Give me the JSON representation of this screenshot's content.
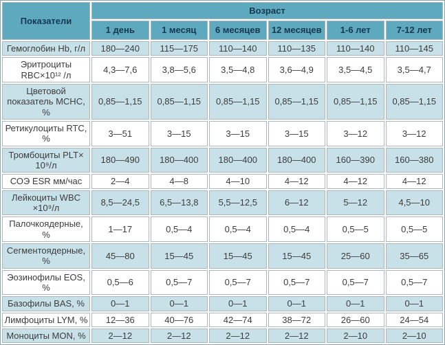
{
  "table": {
    "corner_header": "Показатели",
    "age_header": "Возраст",
    "age_columns": [
      "1 день",
      "1 месяц",
      "6 месяцев",
      "12 месяцев",
      "1-6 лет",
      "7-12 лет"
    ],
    "rows": [
      {
        "label": "Гемоглобин Hb, г/л",
        "values": [
          "180—240",
          "115—175",
          "110—140",
          "110—135",
          "110—140",
          "110—145"
        ]
      },
      {
        "label": "Эритроциты RBC×10¹² /л",
        "values": [
          "4,3—7,6",
          "3,8—5,6",
          "3,5—4,8",
          "3,6—4,9",
          "3,5—4,5",
          "3,5—4,7"
        ]
      },
      {
        "label": "Цветовой показатель MCHC, %",
        "values": [
          "0,85—1,15",
          "0,85—1,15",
          "0,85—1,15",
          "0,85—1,15",
          "0,85—1,15",
          "0,85—1,15"
        ]
      },
      {
        "label": "Ретикулоциты RTC, %",
        "values": [
          "3—51",
          "3—15",
          "3—15",
          "3—15",
          "3—12",
          "3—12"
        ]
      },
      {
        "label": "Тромбоциты PLT× 10⁹/л",
        "values": [
          "180—490",
          "180—400",
          "180—400",
          "180—400",
          "160—390",
          "160—380"
        ]
      },
      {
        "label": "СОЭ ESR мм/час",
        "values": [
          "2—4",
          "4—8",
          "4—10",
          "4—12",
          "4—12",
          "4—12"
        ]
      },
      {
        "label": "Лейкоциты WBC ×10⁹/л",
        "values": [
          "8,5—24,5",
          "6,5—13,8",
          "5,5—12,5",
          "6—12",
          "5—12",
          "4,5—10"
        ]
      },
      {
        "label": "Палочкоядерные, %",
        "values": [
          "1—17",
          "0,5—4",
          "0,5—4",
          "0,5—4",
          "0,5—5",
          "0,5—5"
        ]
      },
      {
        "label": "Сегментоядерные, %",
        "values": [
          "45—80",
          "15—45",
          "15—45",
          "15—45",
          "25—60",
          "35—65"
        ]
      },
      {
        "label": "Эозинофилы EOS, %",
        "values": [
          "0,5—6",
          "0,5—7",
          "0,5—7",
          "0,5—7",
          "0,5—7",
          "0,5—7"
        ]
      },
      {
        "label": "Базофилы BAS, %",
        "values": [
          "0—1",
          "0—1",
          "0—1",
          "0—1",
          "0—1",
          "0—1"
        ]
      },
      {
        "label": "Лимфоциты LYM, %",
        "values": [
          "12—36",
          "40—76",
          "42—74",
          "38—72",
          "26—60",
          "24—54"
        ]
      },
      {
        "label": "Моноциты MON, %",
        "values": [
          "2—12",
          "2—12",
          "2—12",
          "2—12",
          "2—10",
          "2—10"
        ]
      }
    ]
  },
  "colors": {
    "header_bg": "#5fa9bf",
    "header_text": "#14384f",
    "row_alt_bg": "#c8e0e8",
    "row_bg": "#ffffff",
    "body_text": "#3c3c3c",
    "grid": "#aab6ba"
  }
}
